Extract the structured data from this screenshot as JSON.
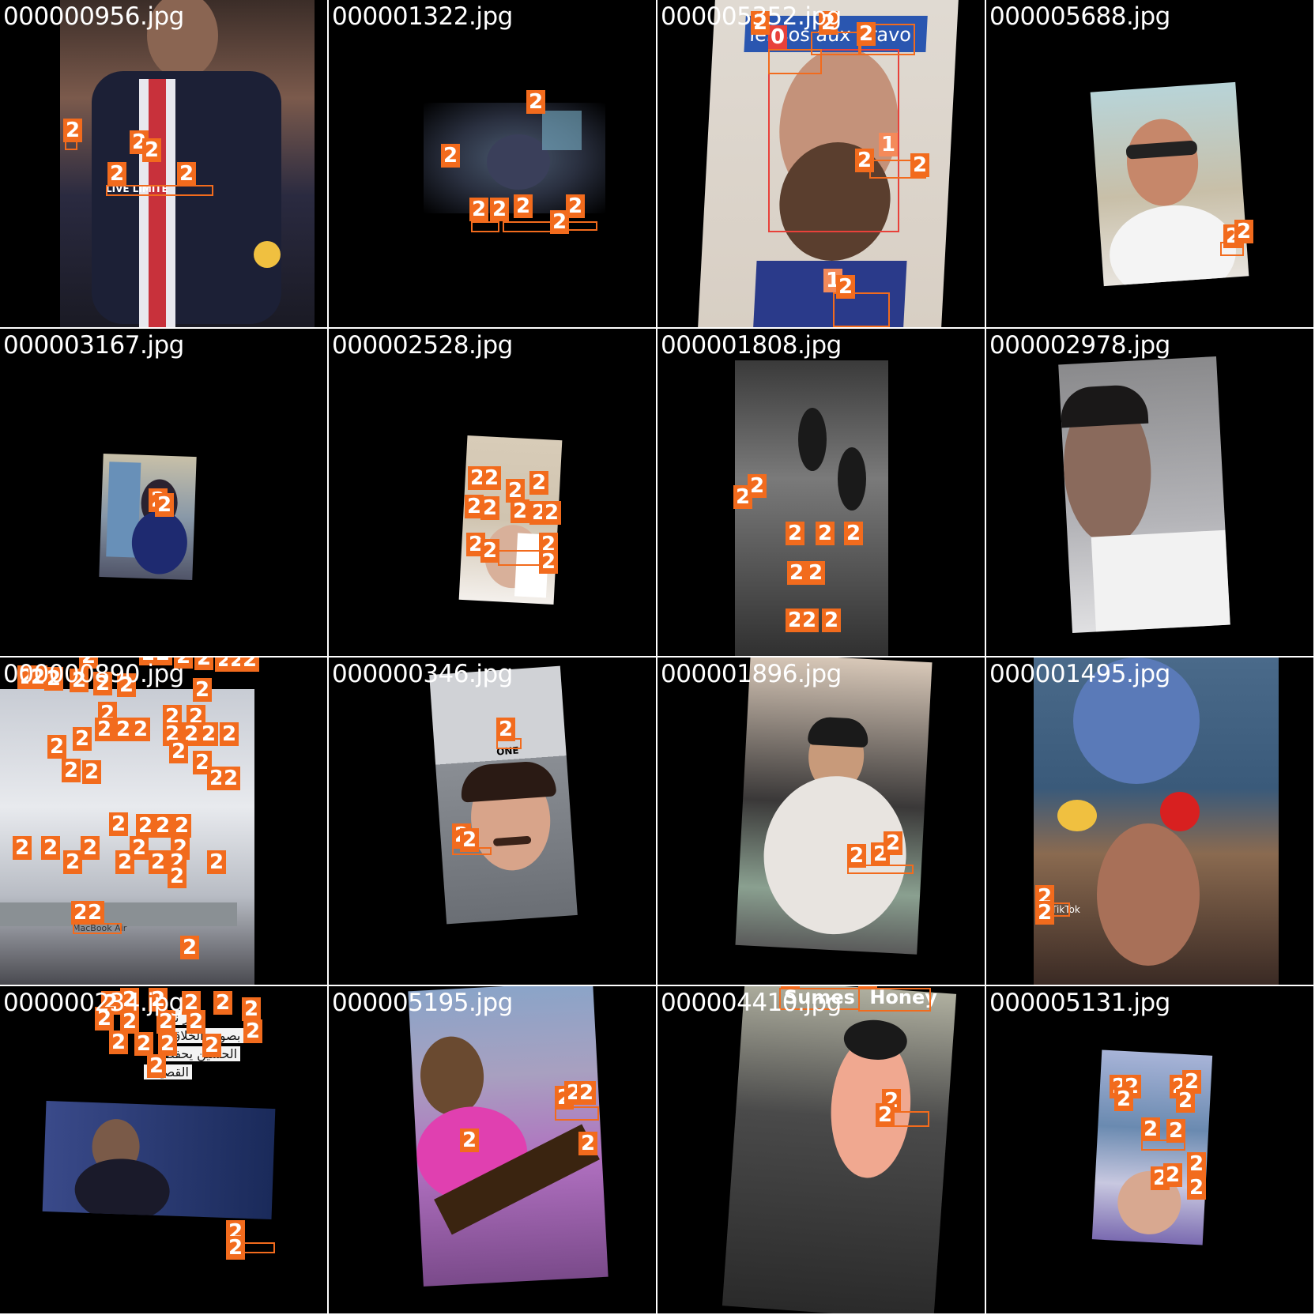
{
  "palette": {
    "class_2": "#f26b1d",
    "class_0": "#e8413a",
    "class_1": "#f48a5a",
    "background": "#000000"
  },
  "tiles": [
    {
      "filename": "000000956.jpg"
    },
    {
      "filename": "000001322.jpg"
    },
    {
      "filename": "000005352.jpg"
    },
    {
      "filename": "000005688.jpg"
    },
    {
      "filename": "000003167.jpg"
    },
    {
      "filename": "000002528.jpg"
    },
    {
      "filename": "000001808.jpg"
    },
    {
      "filename": "000002978.jpg"
    },
    {
      "filename": "000000890.jpg"
    },
    {
      "filename": "000000346.jpg"
    },
    {
      "filename": "000001896.jpg"
    },
    {
      "filename": "000001495.jpg"
    },
    {
      "filename": "000000234.jpg"
    },
    {
      "filename": "000005195.jpg"
    },
    {
      "filename": "000004410.jpg"
    },
    {
      "filename": "000005131.jpg"
    }
  ],
  "label_2": "2",
  "label_1": "1",
  "label_0": "0",
  "overlay_text": {
    "t1_jersey": "LIVE LIMITE",
    "t3_banner_a": "bravo",
    "t3_banner_b": "aux",
    "t3_banner_c": "lensos",
    "t11_tiktok": "TikTok",
    "t15_sign_a": "Honey",
    "t15_sign_b": "Sumes",
    "t13_line1": "خير نور",
    "t13_line2": "بصوت الخلاق",
    "t13_line3": "الحسين يحفظ",
    "t13_line4": "القصيدة",
    "t10_card": "ONE",
    "t9_app": "MacBook Air"
  }
}
